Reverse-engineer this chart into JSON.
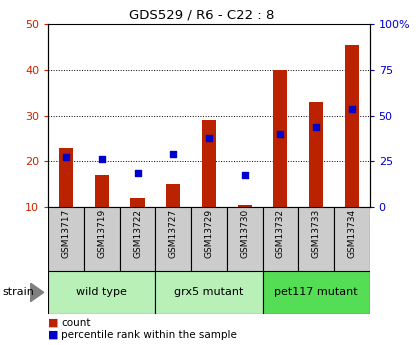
{
  "title": "GDS529 / R6 - C22 : 8",
  "samples": [
    "GSM13717",
    "GSM13719",
    "GSM13722",
    "GSM13727",
    "GSM13729",
    "GSM13730",
    "GSM13732",
    "GSM13733",
    "GSM13734"
  ],
  "count_values": [
    23,
    17,
    12,
    15,
    29,
    10.5,
    40,
    33,
    45.5
  ],
  "count_base": 10,
  "percentile_values": [
    21,
    20.5,
    17.5,
    21.5,
    25,
    17,
    26,
    27.5,
    31.5
  ],
  "ylim_left": [
    10,
    50
  ],
  "ylim_right": [
    0,
    100
  ],
  "yticks_left": [
    10,
    20,
    30,
    40,
    50
  ],
  "yticks_right": [
    0,
    25,
    50,
    75,
    100
  ],
  "ytick_labels_right": [
    "0",
    "25",
    "50",
    "75",
    "100%"
  ],
  "strain_groups": [
    {
      "label": "wild type",
      "indices": [
        0,
        1,
        2
      ],
      "color": "#b8f0b8"
    },
    {
      "label": "grx5 mutant",
      "indices": [
        3,
        4,
        5
      ],
      "color": "#b8f0b8"
    },
    {
      "label": "pet117 mutant",
      "indices": [
        6,
        7,
        8
      ],
      "color": "#55dd55"
    }
  ],
  "bar_color": "#bb2200",
  "percentile_color": "#0000cc",
  "tick_color_left": "#cc2200",
  "tick_color_right": "#0000cc",
  "sample_box_color": "#cccccc",
  "bar_width": 0.4
}
